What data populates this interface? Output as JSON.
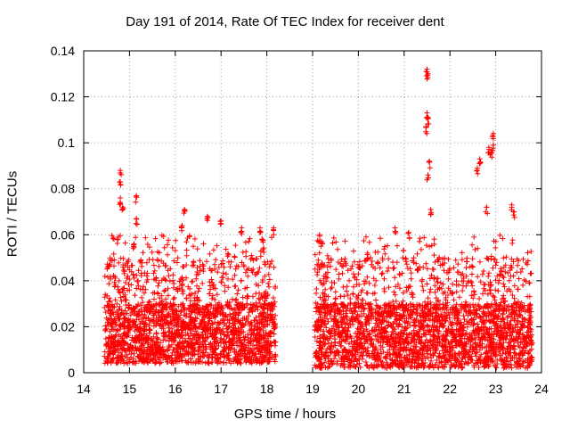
{
  "chart_data": {
    "type": "scatter",
    "title": "Day 191 of 2014, Rate Of TEC Index for receiver dent",
    "xlabel": "GPS time / hours",
    "ylabel": "ROTI / TECUs",
    "xlim": [
      14,
      24
    ],
    "ylim": [
      0,
      0.14
    ],
    "xticks": [
      "14",
      "15",
      "16",
      "17",
      "18",
      "19",
      "20",
      "21",
      "22",
      "23",
      "24"
    ],
    "yticks": [
      "0",
      "0.02",
      "0.04",
      "0.06",
      "0.08",
      "0.1",
      "0.12",
      "0.14"
    ],
    "grid": true,
    "marker": "+",
    "color": "#ff0000",
    "series": [
      {
        "name": "ROTI",
        "segments": [
          {
            "x_start": 14.45,
            "x_end": 18.2,
            "baseline_min": 0.004,
            "baseline_max": 0.03
          },
          {
            "x_start": 19.05,
            "x_end": 23.8,
            "baseline_min": 0.002,
            "baseline_max": 0.03
          }
        ],
        "notable_points": [
          {
            "x": 14.8,
            "y": 0.088
          },
          {
            "x": 14.8,
            "y": 0.083
          },
          {
            "x": 14.8,
            "y": 0.076
          },
          {
            "x": 14.85,
            "y": 0.072
          },
          {
            "x": 14.75,
            "y": 0.059
          },
          {
            "x": 15.15,
            "y": 0.077
          },
          {
            "x": 15.15,
            "y": 0.067
          },
          {
            "x": 15.1,
            "y": 0.056
          },
          {
            "x": 16.2,
            "y": 0.071
          },
          {
            "x": 16.15,
            "y": 0.064
          },
          {
            "x": 16.7,
            "y": 0.068
          },
          {
            "x": 17.0,
            "y": 0.066
          },
          {
            "x": 17.45,
            "y": 0.063
          },
          {
            "x": 17.85,
            "y": 0.063
          },
          {
            "x": 17.9,
            "y": 0.058
          },
          {
            "x": 18.15,
            "y": 0.063
          },
          {
            "x": 19.15,
            "y": 0.06
          },
          {
            "x": 19.2,
            "y": 0.057
          },
          {
            "x": 20.2,
            "y": 0.052
          },
          {
            "x": 20.8,
            "y": 0.063
          },
          {
            "x": 21.1,
            "y": 0.061
          },
          {
            "x": 21.5,
            "y": 0.132
          },
          {
            "x": 21.52,
            "y": 0.13
          },
          {
            "x": 21.5,
            "y": 0.113
          },
          {
            "x": 21.52,
            "y": 0.111
          },
          {
            "x": 21.48,
            "y": 0.107
          },
          {
            "x": 21.55,
            "y": 0.092
          },
          {
            "x": 21.52,
            "y": 0.086
          },
          {
            "x": 21.58,
            "y": 0.071
          },
          {
            "x": 22.6,
            "y": 0.089
          },
          {
            "x": 22.65,
            "y": 0.093
          },
          {
            "x": 22.85,
            "y": 0.098
          },
          {
            "x": 22.9,
            "y": 0.096
          },
          {
            "x": 22.95,
            "y": 0.099
          },
          {
            "x": 22.95,
            "y": 0.104
          },
          {
            "x": 22.8,
            "y": 0.072
          },
          {
            "x": 23.35,
            "y": 0.073
          },
          {
            "x": 23.4,
            "y": 0.07
          }
        ]
      }
    ]
  }
}
